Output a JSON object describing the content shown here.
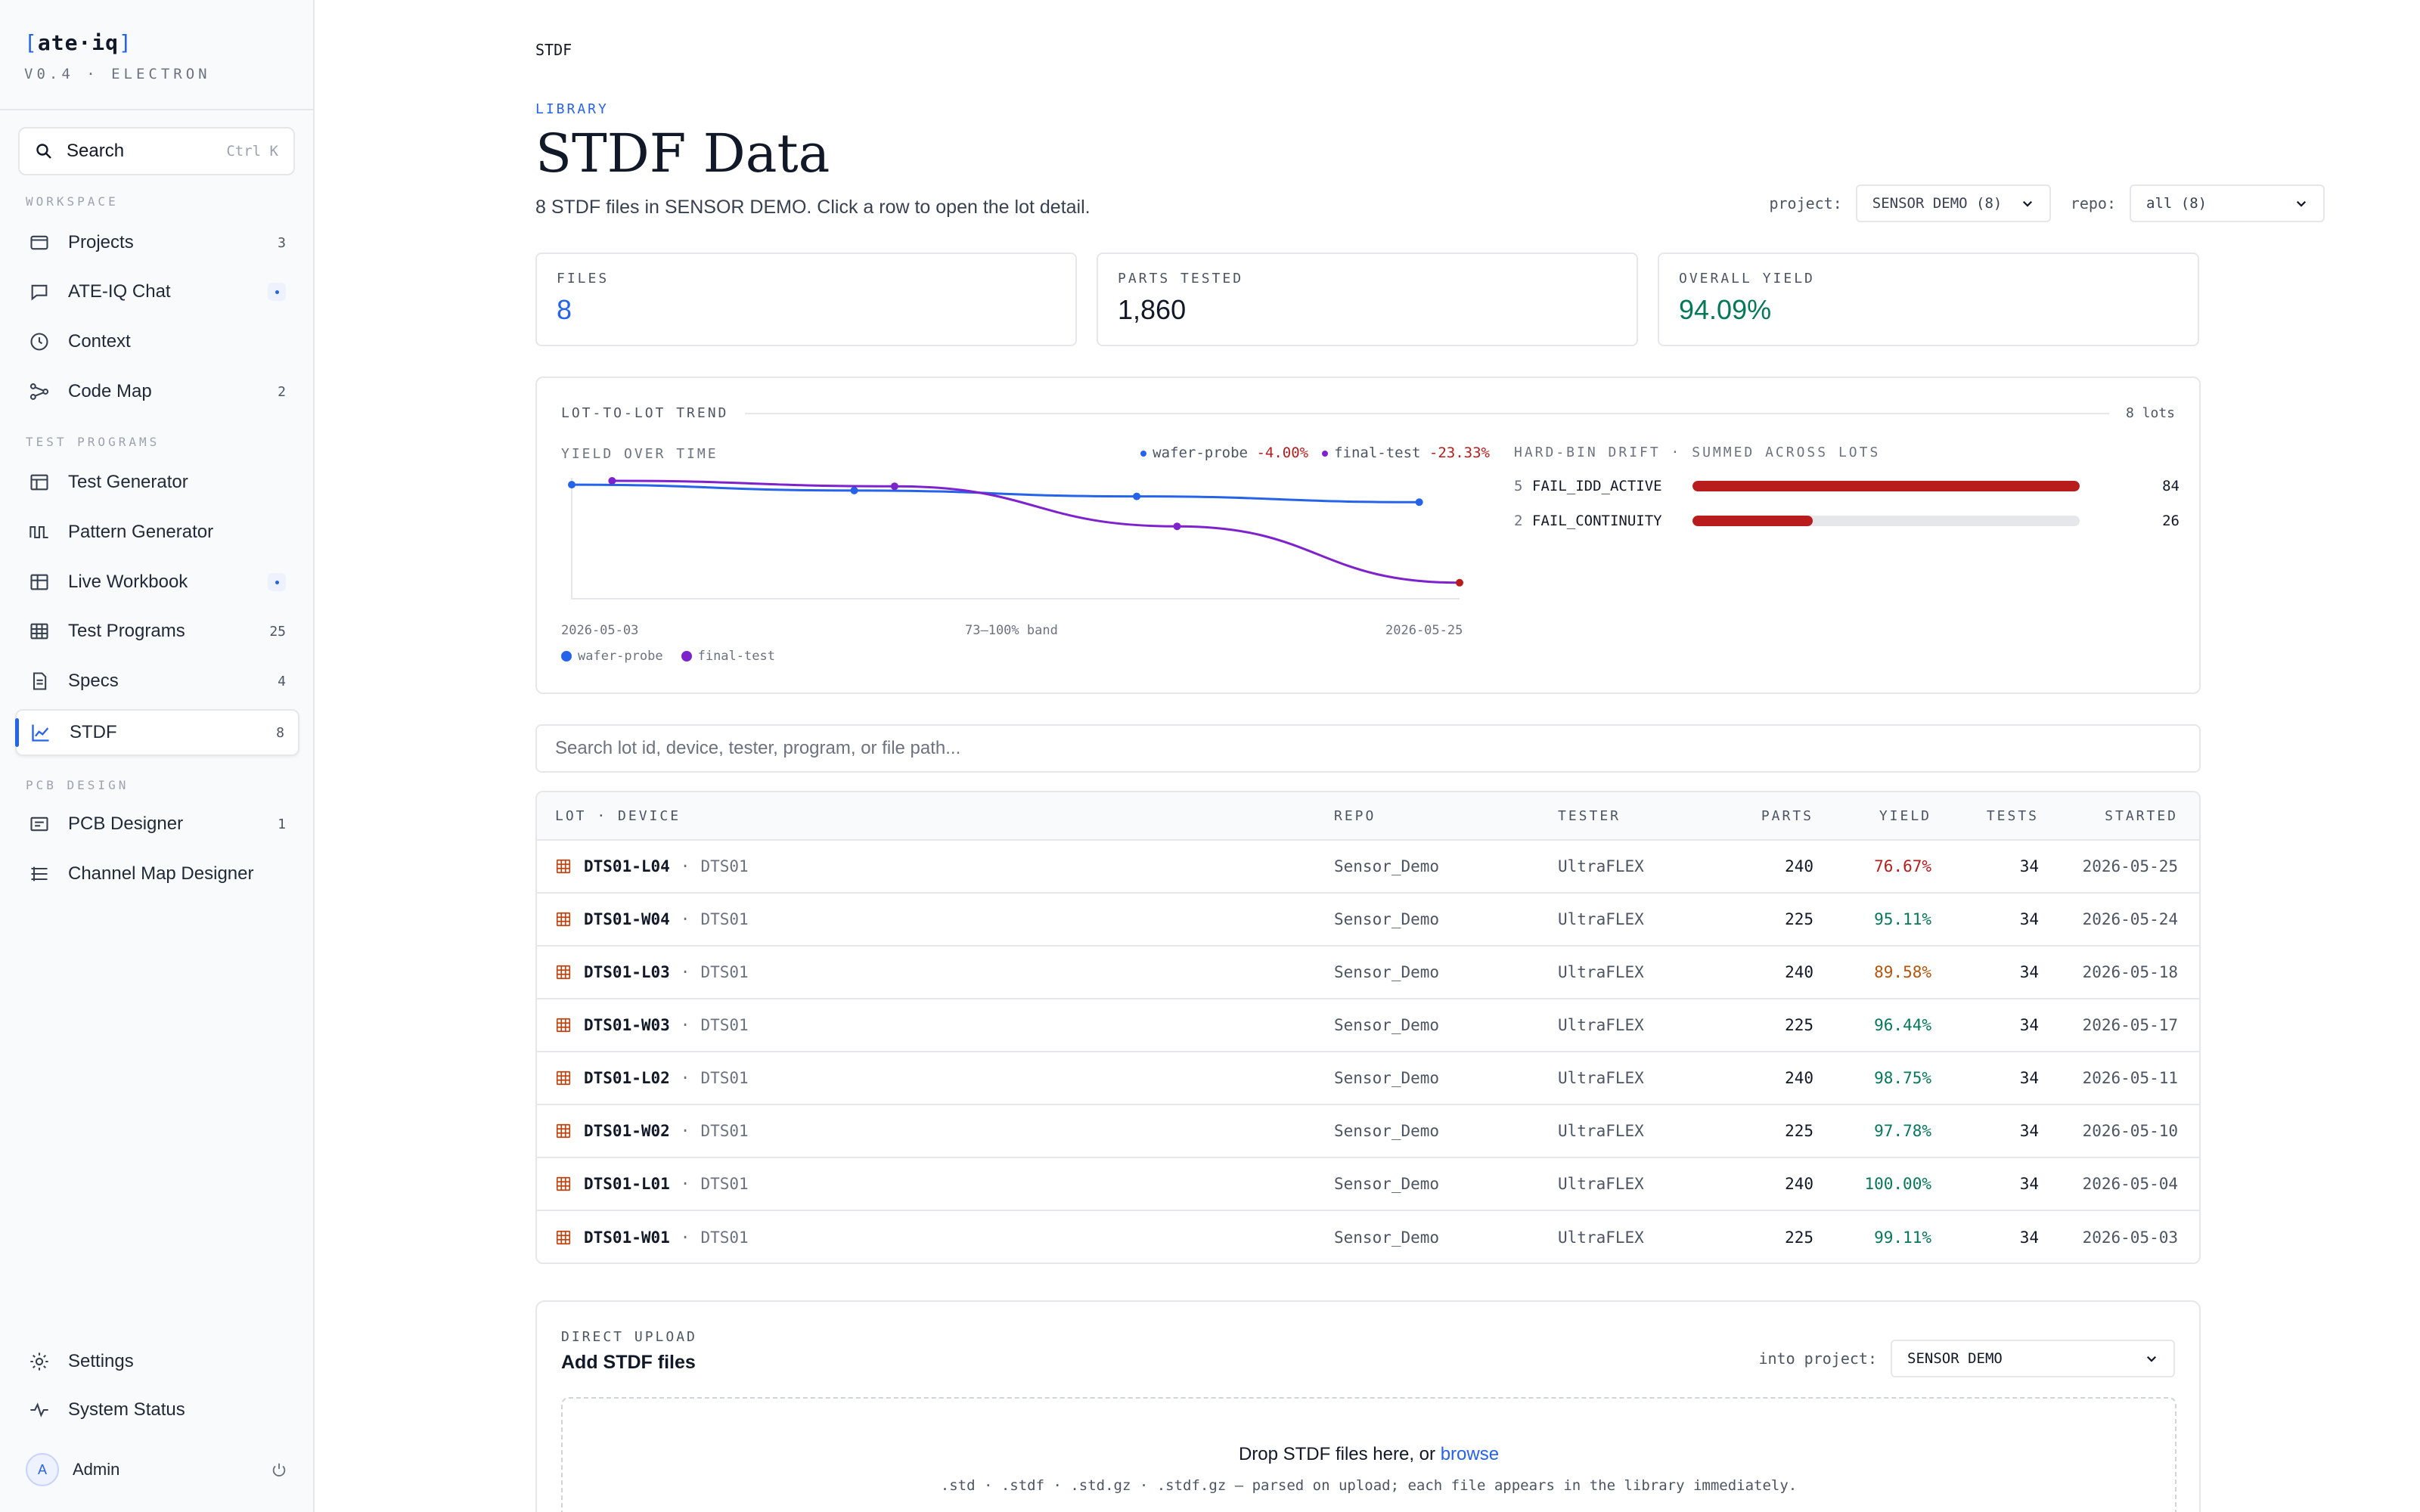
{
  "app": {
    "name_open": "[",
    "name": "ate·iq",
    "name_close": "]",
    "version": "V0.4 · ELECTRON"
  },
  "search": {
    "label": "Search",
    "shortcut": "Ctrl K"
  },
  "sidebar": {
    "sections": {
      "workspace": "WORKSPACE",
      "test_programs": "TEST PROGRAMS",
      "pcb_design": "PCB DESIGN"
    },
    "items": [
      {
        "label": "Projects",
        "count": "3",
        "icon": "folder-icon"
      },
      {
        "label": "ATE-IQ Chat",
        "count": "",
        "icon": "chat-icon",
        "indicator": true
      },
      {
        "label": "Context",
        "count": "",
        "icon": "clock-icon"
      },
      {
        "label": "Code Map",
        "count": "2",
        "icon": "graph-icon"
      },
      {
        "label": "Test Generator",
        "count": "",
        "icon": "generator-icon"
      },
      {
        "label": "Pattern Generator",
        "count": "",
        "icon": "waveform-icon"
      },
      {
        "label": "Live Workbook",
        "count": "",
        "icon": "workbook-icon",
        "indicator": true
      },
      {
        "label": "Test Programs",
        "count": "25",
        "icon": "grid-icon"
      },
      {
        "label": "Specs",
        "count": "4",
        "icon": "document-icon"
      },
      {
        "label": "STDF",
        "count": "8",
        "icon": "chart-icon",
        "active": true
      },
      {
        "label": "PCB Designer",
        "count": "1",
        "icon": "board-icon"
      },
      {
        "label": "Channel Map Designer",
        "count": "",
        "icon": "channel-map-icon"
      }
    ],
    "footer": {
      "settings": "Settings",
      "system_status": "System Status",
      "user_initial": "A",
      "user_name": "Admin"
    }
  },
  "page": {
    "breadcrumb": "STDF",
    "eyebrow": "LIBRARY",
    "title": "STDF Data",
    "subtitle": "8 STDF files in SENSOR DEMO. Click a row to open the lot detail.",
    "filters": {
      "project_label": "project:",
      "project_value": "SENSOR DEMO (8)",
      "repo_label": "repo:",
      "repo_value": "all (8)"
    }
  },
  "stats": {
    "files": {
      "label": "FILES",
      "value": "8"
    },
    "parts": {
      "label": "PARTS TESTED",
      "value": "1,860"
    },
    "yield": {
      "label": "OVERALL YIELD",
      "value": "94.09%"
    }
  },
  "trend": {
    "title": "LOT-TO-LOT TREND",
    "count": "8 lots",
    "yield_label": "YIELD OVER TIME",
    "band": "73–100% band",
    "x_start": "2026-05-03",
    "x_end": "2026-05-25",
    "legend_top": [
      {
        "name": "wafer-probe",
        "delta": "-4.00%"
      },
      {
        "name": "final-test",
        "delta": "-23.33%"
      }
    ],
    "drift_label": "HARD-BIN DRIFT · SUMMED ACROSS LOTS",
    "bins": [
      {
        "num": "5",
        "name": "FAIL_IDD_ACTIVE",
        "count": "84",
        "fraction": 1.0
      },
      {
        "num": "2",
        "name": "FAIL_CONTINUITY",
        "count": "26",
        "fraction": 0.31
      }
    ]
  },
  "chart_data": {
    "type": "line",
    "title": "YIELD OVER TIME",
    "xlabel": "",
    "ylabel": "",
    "ylim": [
      73,
      100
    ],
    "x_range": [
      "2026-05-03",
      "2026-05-25"
    ],
    "series": [
      {
        "name": "wafer-probe",
        "color": "#2563eb",
        "x": [
          "2026-05-03",
          "2026-05-10",
          "2026-05-17",
          "2026-05-24"
        ],
        "values": [
          99.11,
          97.78,
          96.44,
          95.11
        ]
      },
      {
        "name": "final-test",
        "color": "#7e22ce",
        "x": [
          "2026-05-04",
          "2026-05-11",
          "2026-05-18",
          "2026-05-25"
        ],
        "values": [
          100.0,
          98.75,
          89.58,
          76.67
        ]
      }
    ]
  },
  "lot_search": {
    "placeholder": "Search lot id, device, tester, program, or file path..."
  },
  "table": {
    "headers": {
      "lot": "LOT · DEVICE",
      "repo": "REPO",
      "tester": "TESTER",
      "parts": "PARTS",
      "yield": "YIELD",
      "tests": "TESTS",
      "started": "STARTED"
    },
    "rows": [
      {
        "lot": "DTS01-L04",
        "device": "DTS01",
        "repo": "Sensor_Demo",
        "tester": "UltraFLEX",
        "parts": "240",
        "yield": "76.67%",
        "yield_color": "#b91c1c",
        "tests": "34",
        "started": "2026-05-25"
      },
      {
        "lot": "DTS01-W04",
        "device": "DTS01",
        "repo": "Sensor_Demo",
        "tester": "UltraFLEX",
        "parts": "225",
        "yield": "95.11%",
        "yield_color": "#047857",
        "tests": "34",
        "started": "2026-05-24"
      },
      {
        "lot": "DTS01-L03",
        "device": "DTS01",
        "repo": "Sensor_Demo",
        "tester": "UltraFLEX",
        "parts": "240",
        "yield": "89.58%",
        "yield_color": "#b45309",
        "tests": "34",
        "started": "2026-05-18"
      },
      {
        "lot": "DTS01-W03",
        "device": "DTS01",
        "repo": "Sensor_Demo",
        "tester": "UltraFLEX",
        "parts": "225",
        "yield": "96.44%",
        "yield_color": "#047857",
        "tests": "34",
        "started": "2026-05-17"
      },
      {
        "lot": "DTS01-L02",
        "device": "DTS01",
        "repo": "Sensor_Demo",
        "tester": "UltraFLEX",
        "parts": "240",
        "yield": "98.75%",
        "yield_color": "#047857",
        "tests": "34",
        "started": "2026-05-11"
      },
      {
        "lot": "DTS01-W02",
        "device": "DTS01",
        "repo": "Sensor_Demo",
        "tester": "UltraFLEX",
        "parts": "225",
        "yield": "97.78%",
        "yield_color": "#047857",
        "tests": "34",
        "started": "2026-05-10"
      },
      {
        "lot": "DTS01-L01",
        "device": "DTS01",
        "repo": "Sensor_Demo",
        "tester": "UltraFLEX",
        "parts": "240",
        "yield": "100.00%",
        "yield_color": "#047857",
        "tests": "34",
        "started": "2026-05-04"
      },
      {
        "lot": "DTS01-W01",
        "device": "DTS01",
        "repo": "Sensor_Demo",
        "tester": "UltraFLEX",
        "parts": "225",
        "yield": "99.11%",
        "yield_color": "#047857",
        "tests": "34",
        "started": "2026-05-03"
      }
    ]
  },
  "upload": {
    "eyebrow": "DIRECT UPLOAD",
    "title": "Add STDF files",
    "project_label": "into project:",
    "project_value": "SENSOR DEMO",
    "drop_text": "Drop STDF files here, or",
    "browse": "browse",
    "formats": ".std · .stdf · .std.gz · .stdf.gz — parsed on upload; each file appears in the library immediately."
  },
  "colors": {
    "accent": "#2563eb",
    "wafer_probe": "#2563eb",
    "final_test": "#7e22ce",
    "fail": "#b91c1c",
    "good": "#047857",
    "warn": "#b45309"
  }
}
